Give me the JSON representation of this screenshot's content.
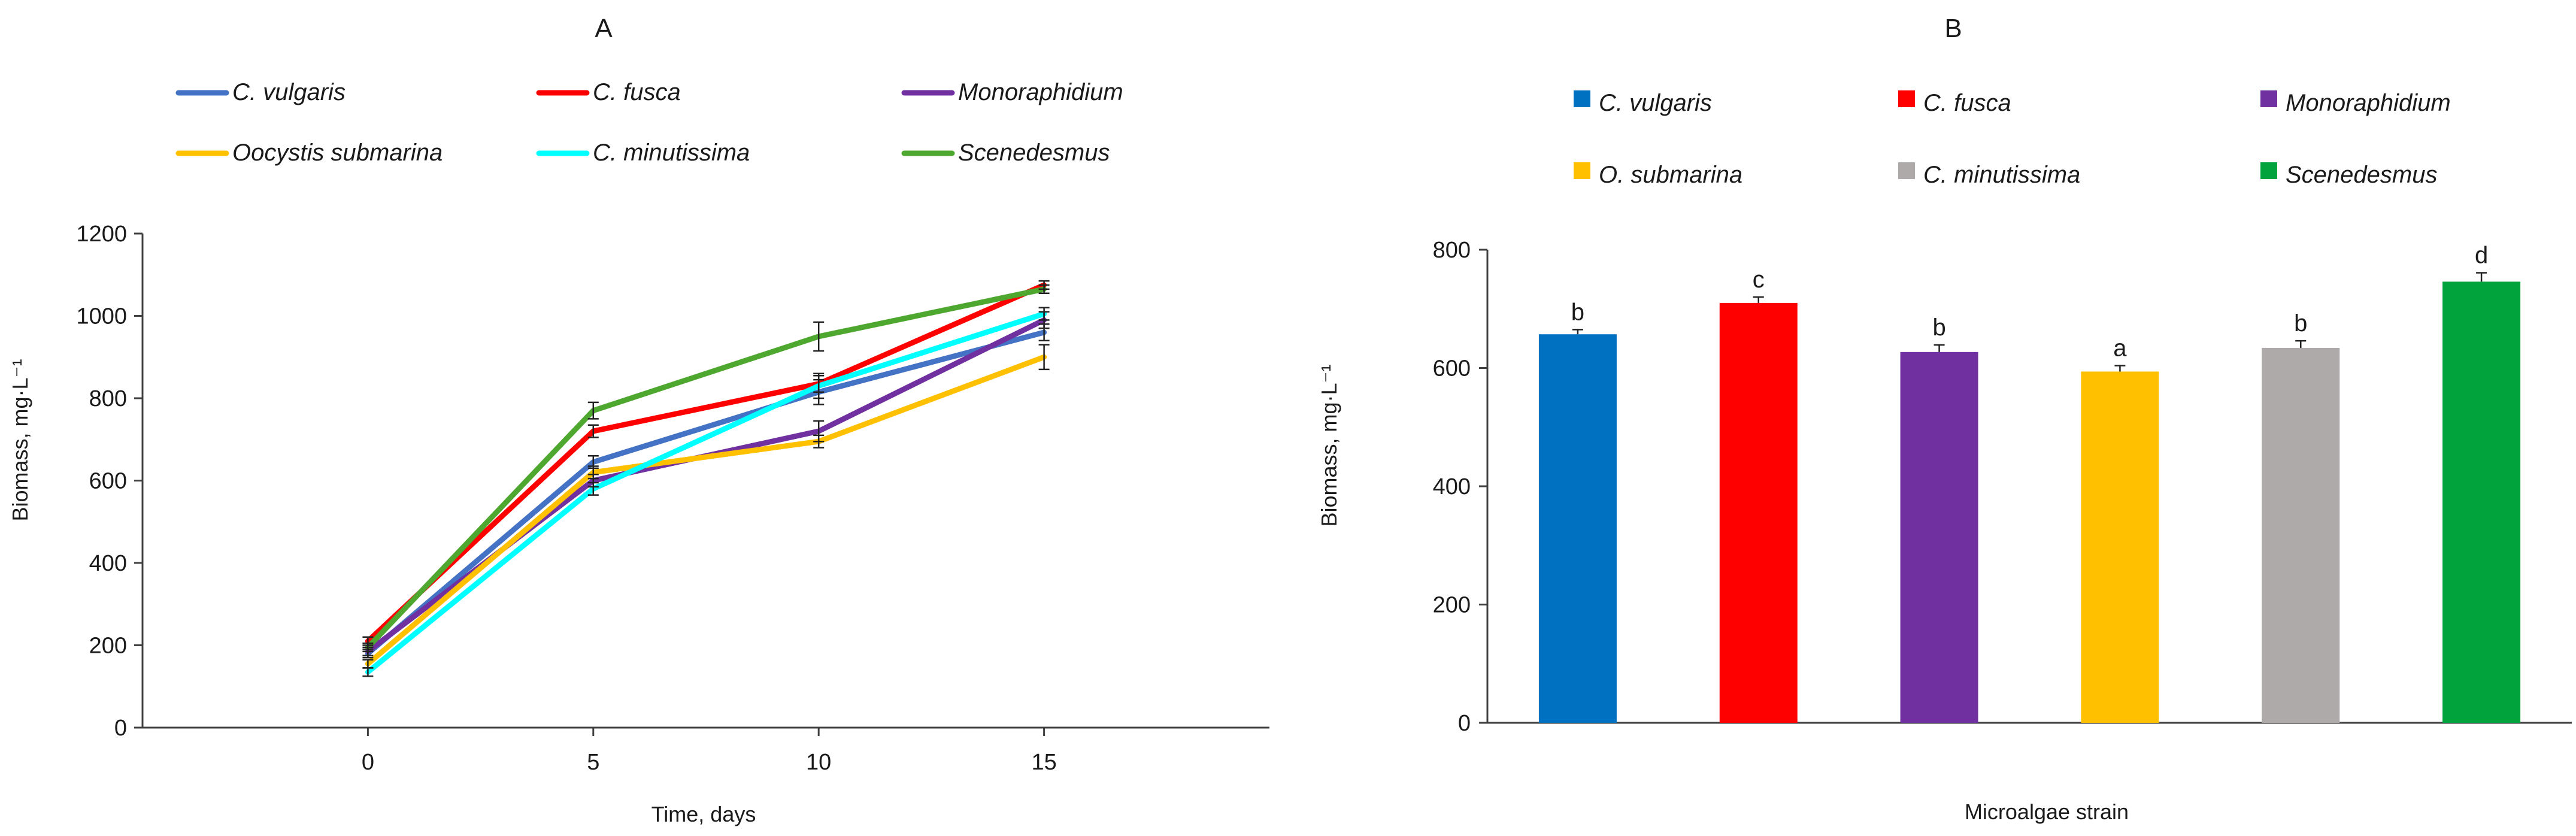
{
  "chart_data": [
    {
      "type": "line",
      "panel_label": "A",
      "xlabel": "Time, days",
      "ylabel": "Biomass, mg·L⁻¹",
      "x": [
        0,
        5,
        10,
        15
      ],
      "x_ticks": [
        "0",
        "5",
        "10",
        "15"
      ],
      "xlim": [
        -5,
        20
      ],
      "ylim": [
        0,
        1200
      ],
      "y_ticks": [
        "0",
        "200",
        "400",
        "600",
        "800",
        "1000",
        "1200"
      ],
      "grid": false,
      "legend_position": "top",
      "series": [
        {
          "name": "C. vulgaris",
          "color": "#4472C4",
          "values": [
            180,
            645,
            815,
            960
          ],
          "errors": [
            10,
            15,
            30,
            20
          ]
        },
        {
          "name": "C. fusca",
          "color": "#FF0000",
          "values": [
            210,
            720,
            835,
            1075
          ],
          "errors": [
            10,
            15,
            20,
            10
          ]
        },
        {
          "name": "Monoraphidium",
          "color": "#7030A0",
          "values": [
            185,
            600,
            720,
            990
          ],
          "errors": [
            10,
            15,
            25,
            20
          ]
        },
        {
          "name": "Oocystis submarina",
          "color": "#FFC000",
          "values": [
            155,
            620,
            695,
            900
          ],
          "errors": [
            10,
            15,
            15,
            30
          ]
        },
        {
          "name": "C. minutissima",
          "color": "#00FFFF",
          "values": [
            135,
            580,
            830,
            1005
          ],
          "errors": [
            10,
            15,
            30,
            15
          ]
        },
        {
          "name": "Scenedesmus",
          "color": "#4EA72E",
          "values": [
            195,
            770,
            950,
            1065
          ],
          "errors": [
            10,
            20,
            35,
            10
          ]
        }
      ]
    },
    {
      "type": "bar",
      "panel_label": "B",
      "xlabel": "Microalgae strain",
      "ylabel": "Biomass, mg·L⁻¹",
      "ylim": [
        0,
        800
      ],
      "y_ticks": [
        "0",
        "200",
        "400",
        "600",
        "800"
      ],
      "grid": false,
      "legend_position": "top",
      "categories": [
        "C. vulgaris",
        "C. fusca",
        "Monoraphidium",
        "O. submarina",
        "C. minutissima",
        "Scenedesmus"
      ],
      "values": [
        657,
        710,
        627,
        594,
        634,
        746
      ],
      "errors": [
        8,
        10,
        12,
        10,
        12,
        15
      ],
      "significance_letters": [
        "b",
        "c",
        "b",
        "a",
        "b",
        "d"
      ],
      "colors": [
        "#0070C0",
        "#FF0000",
        "#7030A0",
        "#FFC000",
        "#AEAAAA",
        "#00A33C"
      ]
    }
  ]
}
